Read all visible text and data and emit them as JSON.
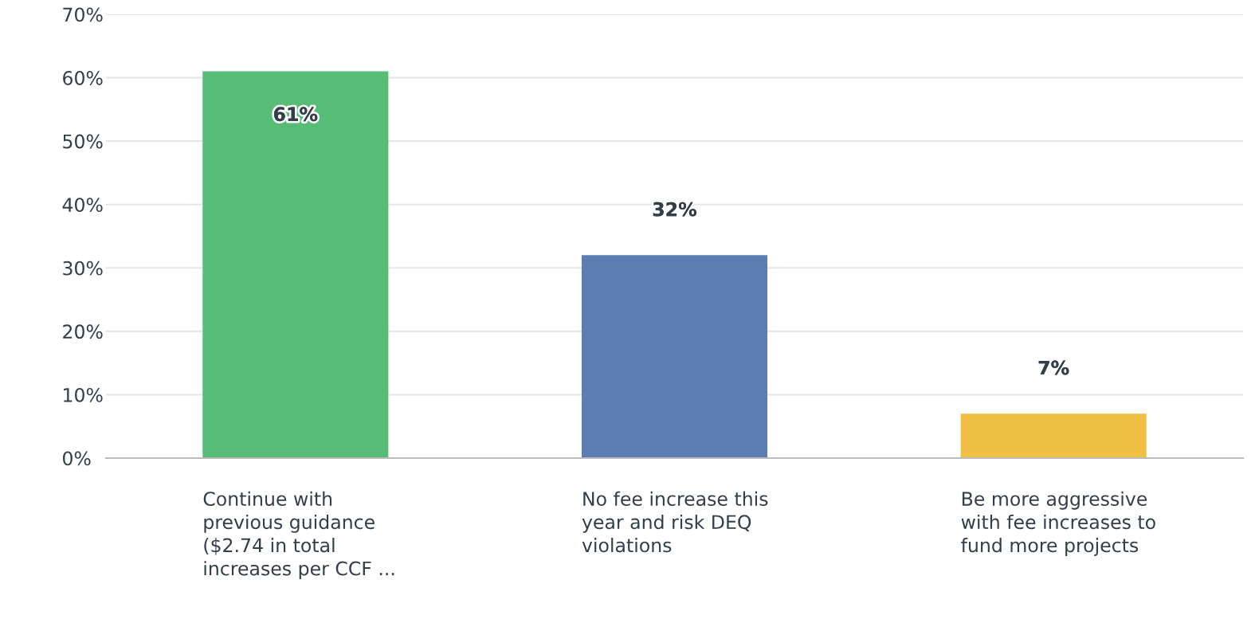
{
  "chart_data": {
    "type": "bar",
    "categories": [
      "Continue with\nprevious guidance\n($2.74 in total\nincreases per CCF ...",
      "No fee increase this\nyear and risk DEQ\nviolations",
      "Be more aggressive\nwith fee increases to\nfund more projects"
    ],
    "values": [
      61,
      32,
      7
    ],
    "colors": [
      "#57bd76",
      "#5b7db1",
      "#efc043"
    ],
    "value_labels": [
      "61%",
      "32%",
      "7%"
    ],
    "ylim": [
      0,
      70
    ],
    "yticks": [
      {
        "value": 0,
        "label": "0%"
      },
      {
        "value": 10,
        "label": "10%"
      },
      {
        "value": 20,
        "label": "20%"
      },
      {
        "value": 30,
        "label": "30%"
      },
      {
        "value": 40,
        "label": "40%"
      },
      {
        "value": 50,
        "label": "50%"
      },
      {
        "value": 60,
        "label": "60%"
      },
      {
        "value": 70,
        "label": "70%"
      }
    ],
    "grid": "y"
  }
}
